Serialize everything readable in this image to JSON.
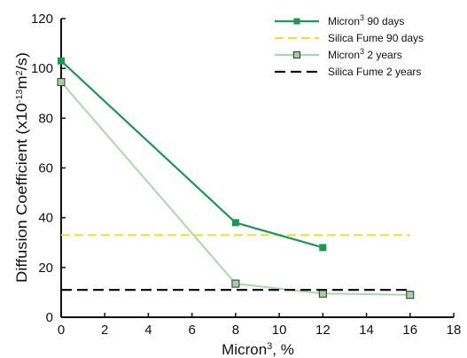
{
  "chart_data": {
    "type": "line",
    "title": "",
    "xlabel": "Micron3, %",
    "ylabel": "Diffusion Coefficient (x10-13m2/s)",
    "xlim": [
      0,
      18
    ],
    "ylim": [
      0,
      120
    ],
    "xticks": [
      0,
      2,
      4,
      6,
      8,
      10,
      12,
      14,
      16,
      18
    ],
    "yticks": [
      0,
      20,
      40,
      60,
      80,
      100,
      120
    ],
    "grid": false,
    "legend": "top-right",
    "series": [
      {
        "name": "Micron3 90 days",
        "style": "solid",
        "marker": "square-filled",
        "color": "#1a9850",
        "x": [
          0,
          8,
          12
        ],
        "y": [
          103,
          38,
          28
        ]
      },
      {
        "name": "Silica Fume 90 days",
        "style": "dashed",
        "marker": "none",
        "color": "#e8e03a",
        "x": [
          0,
          16
        ],
        "y": [
          33,
          33
        ]
      },
      {
        "name": "Micron3 2 years",
        "style": "solid",
        "marker": "square-hollow",
        "color": "#a8d8a8",
        "x": [
          0,
          8,
          12,
          16
        ],
        "y": [
          94.5,
          13.5,
          9.5,
          9
        ]
      },
      {
        "name": "Silica Fume 2 years",
        "style": "dashed",
        "marker": "none",
        "color": "#111111",
        "x": [
          0,
          16
        ],
        "y": [
          11,
          11
        ]
      }
    ]
  }
}
